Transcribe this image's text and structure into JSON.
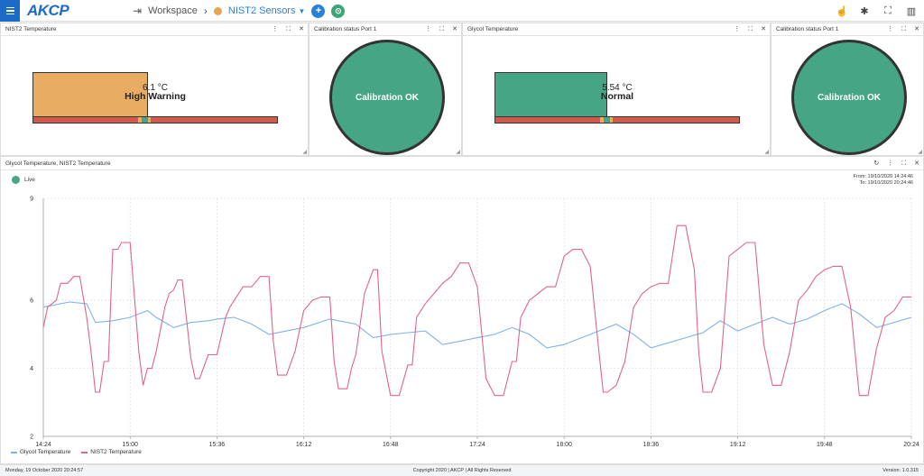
{
  "topbar": {
    "logo": "AKCP",
    "breadcrumb_root": "Workspace",
    "breadcrumb_current": "NIST2 Sensors",
    "add_label": "+",
    "save_label": "⊙"
  },
  "panels": [
    {
      "title": "NIST2 Temperature",
      "value": "6.1 °C",
      "status": "High Warning",
      "fill_fraction": 0.47,
      "fill_color": "#e8ad62"
    },
    {
      "title": "Calibration status Port 1",
      "status": "Calibration OK",
      "color": "#46a585"
    },
    {
      "title": "Glycol Temperature",
      "value": "5.54 °C",
      "status": "Normal",
      "fill_fraction": 0.46,
      "fill_color": "#46a585"
    },
    {
      "title": "Calibration status Port 1",
      "status": "Calibration OK",
      "color": "#46a585"
    }
  ],
  "chart_panel": {
    "title": "Glycol Temperature, NIST2 Temperature",
    "live_label": "Live",
    "from_label": "From: 19/10/2020 14:24:46",
    "to_label": "To: 19/10/2020 20:24:46"
  },
  "chart_data": {
    "type": "line",
    "x_ticks": [
      "14:24",
      "15:00",
      "15:36",
      "16:12",
      "16:48",
      "17:24",
      "18:00",
      "18:36",
      "19:12",
      "19:48",
      "20:24"
    ],
    "y_ticks": [
      2,
      4,
      6,
      9
    ],
    "ylim": [
      2,
      9
    ],
    "grid": true,
    "legend": "bottom-left",
    "series": [
      {
        "name": "Glycol Temperature",
        "color": "#7fb2ec",
        "x_fraction": [
          0,
          0.01,
          0.03,
          0.05,
          0.06,
          0.08,
          0.1,
          0.12,
          0.13,
          0.15,
          0.17,
          0.19,
          0.2,
          0.22,
          0.24,
          0.26,
          0.28,
          0.3,
          0.33,
          0.36,
          0.38,
          0.4,
          0.42,
          0.44,
          0.46,
          0.48,
          0.5,
          0.52,
          0.54,
          0.56,
          0.58,
          0.6,
          0.62,
          0.64,
          0.66,
          0.68,
          0.7,
          0.72,
          0.74,
          0.76,
          0.78,
          0.8,
          0.82,
          0.84,
          0.86,
          0.88,
          0.9,
          0.92,
          0.94,
          0.96,
          0.98,
          1.0
        ],
        "values": [
          5.8,
          5.85,
          5.95,
          5.9,
          5.35,
          5.4,
          5.5,
          5.7,
          5.5,
          5.2,
          5.35,
          5.4,
          5.45,
          5.5,
          5.3,
          5.0,
          5.1,
          5.2,
          5.45,
          5.3,
          4.9,
          5.0,
          5.05,
          5.1,
          4.7,
          4.8,
          4.9,
          5.0,
          5.2,
          5.0,
          4.6,
          4.7,
          4.9,
          5.1,
          5.3,
          5.0,
          4.6,
          4.75,
          4.9,
          5.05,
          5.4,
          5.1,
          5.3,
          5.5,
          5.3,
          5.45,
          5.7,
          5.9,
          5.6,
          5.2,
          5.35,
          5.5
        ]
      },
      {
        "name": "NIST2 Temperature",
        "color": "#e06586",
        "x_fraction": [
          0,
          0.005,
          0.015,
          0.02,
          0.028,
          0.035,
          0.042,
          0.05,
          0.055,
          0.06,
          0.065,
          0.07,
          0.075,
          0.08,
          0.086,
          0.09,
          0.1,
          0.11,
          0.115,
          0.12,
          0.125,
          0.13,
          0.14,
          0.145,
          0.15,
          0.155,
          0.16,
          0.17,
          0.175,
          0.18,
          0.19,
          0.2,
          0.21,
          0.215,
          0.22,
          0.23,
          0.24,
          0.25,
          0.26,
          0.265,
          0.27,
          0.28,
          0.29,
          0.3,
          0.31,
          0.32,
          0.33,
          0.335,
          0.34,
          0.35,
          0.355,
          0.36,
          0.37,
          0.38,
          0.385,
          0.39,
          0.4,
          0.41,
          0.42,
          0.425,
          0.43,
          0.44,
          0.45,
          0.46,
          0.47,
          0.48,
          0.49,
          0.5,
          0.51,
          0.52,
          0.53,
          0.54,
          0.545,
          0.55,
          0.56,
          0.57,
          0.58,
          0.59,
          0.6,
          0.61,
          0.62,
          0.63,
          0.64,
          0.645,
          0.65,
          0.66,
          0.67,
          0.68,
          0.69,
          0.7,
          0.71,
          0.72,
          0.73,
          0.74,
          0.75,
          0.755,
          0.76,
          0.77,
          0.78,
          0.79,
          0.8,
          0.81,
          0.82,
          0.83,
          0.84,
          0.85,
          0.86,
          0.87,
          0.88,
          0.89,
          0.9,
          0.91,
          0.92,
          0.93,
          0.94,
          0.95,
          0.96,
          0.97,
          0.98,
          0.99,
          1.0
        ],
        "values": [
          5.2,
          5.8,
          6.0,
          6.5,
          6.5,
          6.7,
          6.7,
          5.5,
          4.5,
          3.3,
          3.3,
          4.2,
          4.2,
          7.5,
          7.5,
          7.7,
          7.7,
          4.5,
          3.5,
          4.0,
          4.0,
          4.5,
          5.8,
          6.2,
          6.3,
          6.6,
          6.6,
          4.3,
          3.7,
          3.7,
          4.4,
          4.4,
          5.5,
          5.8,
          6.0,
          6.4,
          6.4,
          6.7,
          6.7,
          4.8,
          3.8,
          3.8,
          4.5,
          5.7,
          6.0,
          6.1,
          6.1,
          4.2,
          3.4,
          3.4,
          4.0,
          4.4,
          6.2,
          6.9,
          6.9,
          4.5,
          3.2,
          3.2,
          4.1,
          4.1,
          5.5,
          5.9,
          6.2,
          6.5,
          6.7,
          7.1,
          7.1,
          6.4,
          3.7,
          3.2,
          3.2,
          4.2,
          4.2,
          5.5,
          6.0,
          6.2,
          6.4,
          6.4,
          7.3,
          7.5,
          7.5,
          7.0,
          4.5,
          3.3,
          3.3,
          3.5,
          4.2,
          5.8,
          6.2,
          6.4,
          6.5,
          6.5,
          8.2,
          8.2,
          6.9,
          4.5,
          3.3,
          3.3,
          4.0,
          7.3,
          7.5,
          7.7,
          7.7,
          4.7,
          3.5,
          3.5,
          4.5,
          6.0,
          6.3,
          6.7,
          6.9,
          7.0,
          7.0,
          5.8,
          3.2,
          3.2,
          4.6,
          5.5,
          5.7,
          6.1,
          6.1
        ]
      }
    ]
  },
  "statusbar": {
    "datetime": "Monday, 19 October 2020 20:24:57",
    "copyright": "Copyright 2020 | AKCP | All Rights Reserved",
    "version": "Version: 1.0.315"
  }
}
